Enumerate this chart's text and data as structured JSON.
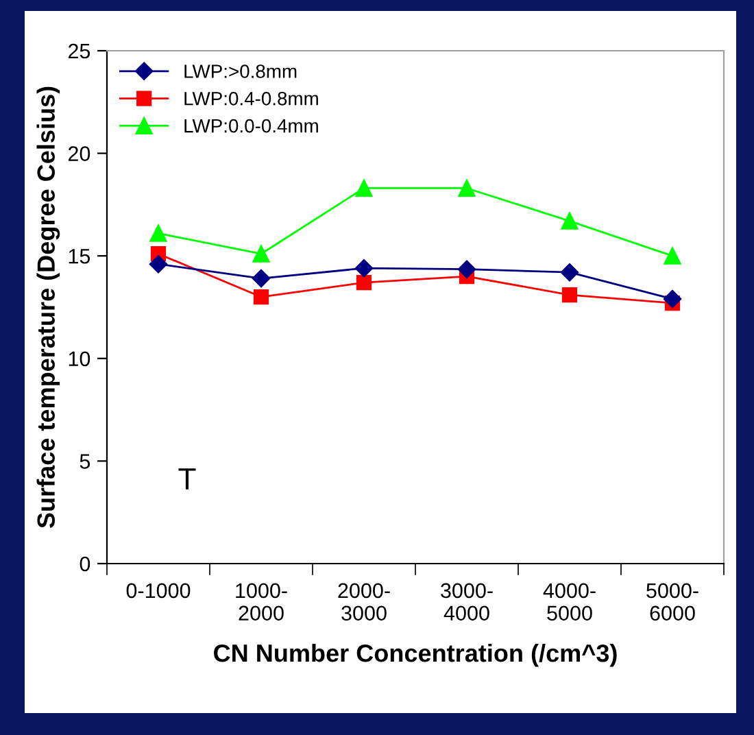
{
  "chart_data": {
    "type": "line",
    "xlabel": "CN Number Concentration (/cm^3)",
    "ylabel": "Surface temperature (Degree Celsius)",
    "categories": [
      "0-1000",
      "1000-\n2000",
      "2000-\n3000",
      "3000-\n4000",
      "4000-\n5000",
      "5000-\n6000"
    ],
    "series": [
      {
        "name": "LWP:>0.8mm",
        "color": "#000080",
        "marker": "diamond",
        "values": [
          14.6,
          13.9,
          14.4,
          14.35,
          14.2,
          12.9
        ]
      },
      {
        "name": "LWP:0.4-0.8mm",
        "color": "#ff0000",
        "marker": "square",
        "values": [
          15.1,
          13.0,
          13.7,
          14.0,
          13.1,
          12.7
        ]
      },
      {
        "name": "LWP:0.0-0.4mm",
        "color": "#00ff00",
        "marker": "triangle",
        "values": [
          16.1,
          15.1,
          18.3,
          18.3,
          16.7,
          15.0
        ]
      }
    ],
    "ylim": [
      0,
      25
    ],
    "yticks": [
      0,
      5,
      10,
      15,
      20,
      25
    ],
    "grid": false,
    "legend": "top left",
    "line_style": "solid",
    "annotations": [
      "T"
    ]
  }
}
